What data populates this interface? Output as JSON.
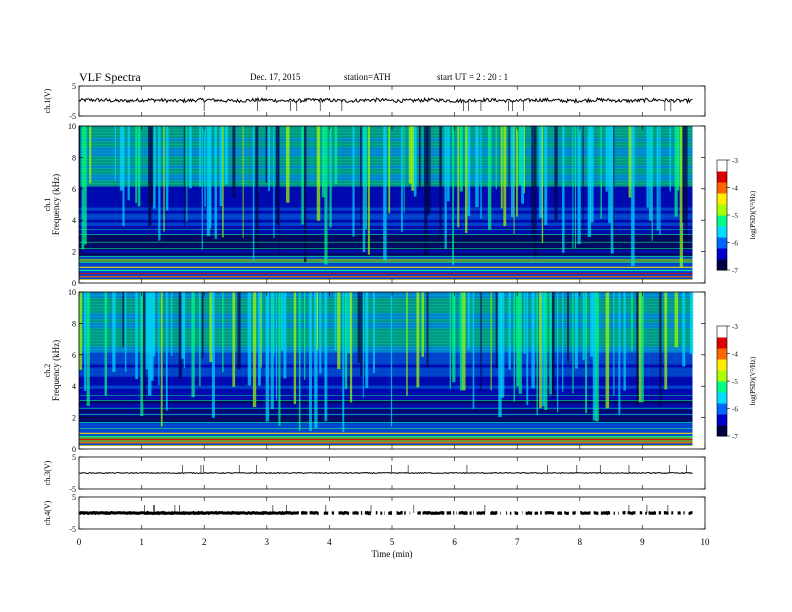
{
  "header": {
    "title": "VLF Spectra",
    "date": "Dec. 17, 2015",
    "station": "station=ATH",
    "start": "start UT = 2 : 20 : 1"
  },
  "chart_data": [
    {
      "type": "line",
      "panel": "ch1-waveform",
      "ylabel": "ch.1(V)",
      "ylim": [
        -5,
        5
      ],
      "yticks": [
        "5",
        "-5"
      ],
      "xlim": [
        0,
        10
      ],
      "level": 0,
      "color": "#000000"
    },
    {
      "type": "heatmap",
      "panel": "ch1-spectrogram",
      "ylabel_channel": "ch.1",
      "ylabel": "Frequency (kHz)",
      "ylim": [
        0,
        10
      ],
      "yticks": [
        "0",
        "2",
        "4",
        "6",
        "8",
        "10"
      ],
      "xlim": [
        0,
        10
      ],
      "data_end_min": 9.8,
      "colorbar": {
        "label": "log(PSD)(V²/Hz)",
        "range": [
          -7,
          -3
        ],
        "ticks": [
          "-3",
          "-4",
          "-5",
          "-6",
          "-7"
        ]
      }
    },
    {
      "type": "heatmap",
      "panel": "ch2-spectrogram",
      "ylabel_channel": "ch.2",
      "ylabel": "Frequency (kHz)",
      "ylim": [
        0,
        10
      ],
      "yticks": [
        "0",
        "2",
        "4",
        "6",
        "8",
        "10"
      ],
      "xlim": [
        0,
        10
      ],
      "data_end_min": 9.8,
      "colorbar": {
        "label": "log(PSD)(V²/Hz)",
        "range": [
          -7,
          -3
        ],
        "ticks": [
          "-3",
          "-4",
          "-5",
          "-6",
          "-7"
        ]
      }
    },
    {
      "type": "line",
      "panel": "ch3-waveform",
      "ylabel": "ch.3(V)",
      "ylim": [
        -5,
        5
      ],
      "yticks": [
        "5",
        "-5"
      ],
      "xlim": [
        0,
        10
      ],
      "level": 0,
      "color": "#000000"
    },
    {
      "type": "line",
      "panel": "ch4-waveform",
      "ylabel": "ch.4(V)",
      "ylim": [
        -5,
        5
      ],
      "yticks": [
        "5",
        "-5"
      ],
      "xlim": [
        0,
        10
      ],
      "level": 0,
      "color": "#000000"
    }
  ],
  "x_axis": {
    "label": "Time (min)",
    "ticks": [
      "0",
      "1",
      "2",
      "3",
      "4",
      "5",
      "6",
      "7",
      "8",
      "9",
      "10"
    ]
  },
  "colormap": [
    "#000044",
    "#0000cc",
    "#0066ff",
    "#00ddff",
    "#00ff88",
    "#aaff00",
    "#ffee00",
    "#ff6600",
    "#dd0000",
    "#ffffff"
  ]
}
